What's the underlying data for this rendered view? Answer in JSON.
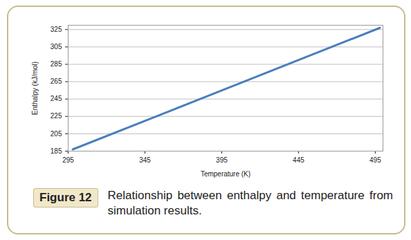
{
  "chart_data": {
    "type": "line",
    "figure_label": "Figure 12",
    "caption": "Relationship between enthalpy and temperature from simulation results.",
    "x_label": "Temperature (K)",
    "y_label": "Enthalpy (kJ/mol)",
    "x": [
      298,
      348,
      398,
      448,
      498
    ],
    "values": [
      187,
      222,
      257,
      292,
      327
    ],
    "color": "#4a7ebb",
    "xlim": [
      295,
      500
    ],
    "ylim": [
      185,
      330
    ],
    "xticks": [
      295,
      345,
      395,
      445,
      495
    ],
    "yticks": [
      185,
      205,
      225,
      245,
      265,
      285,
      305,
      325
    ],
    "grid": true
  }
}
